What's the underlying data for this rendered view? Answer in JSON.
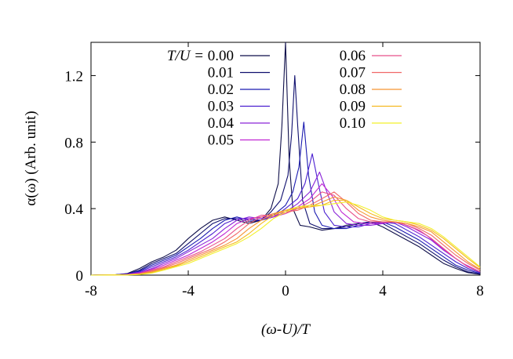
{
  "chart_data": {
    "type": "line",
    "title": "",
    "xlabel": "(ω-U)/T",
    "ylabel": "α(ω) (Arb. unit)",
    "xlim": [
      -8,
      8
    ],
    "ylim": [
      0,
      1.4
    ],
    "xticks": [
      -8,
      -4,
      0,
      4,
      8
    ],
    "yticks": [
      0,
      0.4,
      0.8,
      1.2
    ],
    "xtick_labels": [
      "-8",
      "-4",
      "0",
      "4",
      "8"
    ],
    "ytick_labels": [
      "0",
      "0.4",
      "0.8",
      "1.2"
    ],
    "grid": false,
    "legend": {
      "placement": "top",
      "header": "T/U =",
      "columns": 2
    },
    "series": [
      {
        "name": "0.00",
        "color": "#0f0f4a",
        "x": [
          -8,
          -7,
          -6.5,
          -6,
          -5.5,
          -5,
          -4.5,
          -4,
          -3.5,
          -3,
          -2.5,
          -2,
          -1.5,
          -1,
          -0.6,
          -0.3,
          -0.15,
          0,
          0.15,
          0.3,
          0.6,
          1,
          1.5,
          2,
          2.5,
          3,
          3.5,
          4,
          4.5,
          5,
          5.5,
          6,
          6.5,
          7,
          7.5,
          8
        ],
        "y": [
          0,
          0.002,
          0.01,
          0.04,
          0.08,
          0.11,
          0.15,
          0.22,
          0.28,
          0.33,
          0.35,
          0.33,
          0.31,
          0.33,
          0.4,
          0.55,
          0.9,
          1.4,
          0.7,
          0.4,
          0.3,
          0.29,
          0.27,
          0.28,
          0.3,
          0.31,
          0.32,
          0.29,
          0.25,
          0.21,
          0.17,
          0.12,
          0.07,
          0.04,
          0.015,
          0.005
        ]
      },
      {
        "name": "0.01",
        "color": "#10106e",
        "x": [
          -8,
          -7,
          -6.5,
          -6,
          -5.5,
          -5,
          -4.5,
          -4,
          -3.5,
          -3,
          -2.5,
          -2,
          -1.5,
          -1,
          -0.6,
          -0.2,
          0.1,
          0.25,
          0.38,
          0.5,
          0.7,
          1,
          1.5,
          2,
          2.5,
          3,
          3.5,
          4,
          4.5,
          5,
          5.5,
          6,
          6.5,
          7,
          7.5,
          8
        ],
        "y": [
          0,
          0.002,
          0.008,
          0.03,
          0.07,
          0.1,
          0.13,
          0.19,
          0.25,
          0.31,
          0.34,
          0.34,
          0.32,
          0.33,
          0.38,
          0.45,
          0.6,
          0.85,
          1.2,
          0.9,
          0.45,
          0.31,
          0.28,
          0.28,
          0.29,
          0.31,
          0.32,
          0.31,
          0.27,
          0.23,
          0.19,
          0.14,
          0.09,
          0.05,
          0.02,
          0.007
        ]
      },
      {
        "name": "0.02",
        "color": "#1a1ab0",
        "x": [
          -8,
          -7,
          -6.5,
          -6,
          -5.5,
          -5,
          -4.5,
          -4,
          -3.5,
          -3,
          -2.5,
          -2,
          -1.5,
          -1,
          -0.5,
          0,
          0.3,
          0.55,
          0.75,
          0.95,
          1.2,
          1.5,
          2,
          2.5,
          3,
          3.5,
          4,
          4.5,
          5,
          5.5,
          6,
          6.5,
          7,
          7.5,
          8
        ],
        "y": [
          0,
          0.002,
          0.007,
          0.025,
          0.06,
          0.09,
          0.12,
          0.17,
          0.22,
          0.28,
          0.33,
          0.35,
          0.33,
          0.33,
          0.36,
          0.42,
          0.5,
          0.65,
          0.92,
          0.6,
          0.38,
          0.3,
          0.28,
          0.28,
          0.3,
          0.32,
          0.32,
          0.29,
          0.25,
          0.21,
          0.16,
          0.11,
          0.06,
          0.03,
          0.01
        ]
      },
      {
        "name": "0.03",
        "color": "#4a1fd0",
        "x": [
          -8,
          -7,
          -6.5,
          -6,
          -5.5,
          -5,
          -4.5,
          -4,
          -3.5,
          -3,
          -2.5,
          -2,
          -1.5,
          -1,
          -0.5,
          0,
          0.5,
          0.8,
          1.1,
          1.35,
          1.6,
          2,
          2.5,
          3,
          3.5,
          4,
          4.5,
          5,
          5.5,
          6,
          6.5,
          7,
          7.5,
          8
        ],
        "y": [
          0,
          0.002,
          0.006,
          0.02,
          0.05,
          0.08,
          0.11,
          0.15,
          0.2,
          0.25,
          0.31,
          0.34,
          0.34,
          0.33,
          0.35,
          0.4,
          0.46,
          0.55,
          0.73,
          0.55,
          0.38,
          0.3,
          0.29,
          0.29,
          0.31,
          0.32,
          0.31,
          0.27,
          0.23,
          0.18,
          0.13,
          0.08,
          0.04,
          0.015
        ]
      },
      {
        "name": "0.04",
        "color": "#8a24d8",
        "x": [
          -8,
          -7,
          -6.5,
          -6,
          -5.5,
          -5,
          -4.5,
          -4,
          -3.5,
          -3,
          -2.5,
          -2,
          -1.5,
          -1,
          -0.5,
          0,
          0.5,
          1,
          1.4,
          1.7,
          2,
          2.5,
          3,
          3.5,
          4,
          4.5,
          5,
          5.5,
          6,
          6.5,
          7,
          7.5,
          8
        ],
        "y": [
          0,
          0.001,
          0.005,
          0.016,
          0.04,
          0.07,
          0.1,
          0.14,
          0.18,
          0.22,
          0.28,
          0.33,
          0.35,
          0.34,
          0.35,
          0.38,
          0.43,
          0.5,
          0.62,
          0.5,
          0.38,
          0.31,
          0.3,
          0.3,
          0.31,
          0.32,
          0.29,
          0.25,
          0.21,
          0.15,
          0.1,
          0.05,
          0.02
        ]
      },
      {
        "name": "0.05",
        "color": "#c026d3",
        "x": [
          -8,
          -7,
          -6.5,
          -6,
          -5.5,
          -5,
          -4.5,
          -4,
          -3.5,
          -3,
          -2.5,
          -2,
          -1.5,
          -1,
          -0.5,
          0,
          0.5,
          1,
          1.5,
          1.9,
          2.3,
          2.8,
          3.3,
          3.8,
          4.3,
          4.8,
          5.3,
          5.8,
          6.3,
          6.8,
          7.3,
          8
        ],
        "y": [
          0,
          0.001,
          0.004,
          0.013,
          0.035,
          0.06,
          0.09,
          0.12,
          0.16,
          0.2,
          0.25,
          0.31,
          0.34,
          0.35,
          0.35,
          0.37,
          0.41,
          0.46,
          0.55,
          0.48,
          0.38,
          0.32,
          0.31,
          0.31,
          0.32,
          0.31,
          0.28,
          0.24,
          0.18,
          0.12,
          0.07,
          0.02
        ]
      },
      {
        "name": "0.06",
        "color": "#e8508a",
        "x": [
          -8,
          -7,
          -6.5,
          -6,
          -5.5,
          -5,
          -4.5,
          -4,
          -3.5,
          -3,
          -2.5,
          -2,
          -1.5,
          -1,
          -0.5,
          0,
          0.5,
          1,
          1.5,
          2,
          2.5,
          3,
          3.5,
          4,
          4.5,
          5,
          5.5,
          6,
          6.5,
          7,
          7.5,
          8
        ],
        "y": [
          0,
          0.001,
          0.003,
          0.01,
          0.03,
          0.05,
          0.08,
          0.11,
          0.14,
          0.18,
          0.22,
          0.28,
          0.33,
          0.36,
          0.36,
          0.37,
          0.4,
          0.44,
          0.5,
          0.48,
          0.4,
          0.34,
          0.32,
          0.32,
          0.32,
          0.3,
          0.27,
          0.22,
          0.16,
          0.1,
          0.05,
          0.02
        ]
      },
      {
        "name": "0.07",
        "color": "#f06868",
        "x": [
          -8,
          -7,
          -6.5,
          -6,
          -5.5,
          -5,
          -4.5,
          -4,
          -3.5,
          -3,
          -2.5,
          -2,
          -1.5,
          -1,
          -0.5,
          0,
          0.5,
          1,
          1.5,
          2,
          2.5,
          3,
          3.5,
          4,
          4.5,
          5,
          5.5,
          6,
          6.5,
          7,
          7.5,
          8
        ],
        "y": [
          0,
          0.001,
          0.002,
          0.008,
          0.025,
          0.045,
          0.07,
          0.1,
          0.13,
          0.16,
          0.2,
          0.25,
          0.31,
          0.35,
          0.37,
          0.38,
          0.39,
          0.42,
          0.46,
          0.5,
          0.44,
          0.37,
          0.33,
          0.32,
          0.32,
          0.31,
          0.28,
          0.24,
          0.18,
          0.12,
          0.07,
          0.03
        ]
      },
      {
        "name": "0.08",
        "color": "#f59432",
        "x": [
          -8,
          -7,
          -6.5,
          -6,
          -5.5,
          -5,
          -4.5,
          -4,
          -3.5,
          -3,
          -2.5,
          -2,
          -1.5,
          -1,
          -0.5,
          0,
          0.5,
          1,
          1.5,
          2,
          2.5,
          3,
          3.5,
          4,
          4.5,
          5,
          5.5,
          6,
          6.5,
          7,
          7.5,
          8
        ],
        "y": [
          0,
          0.001,
          0.002,
          0.006,
          0.02,
          0.04,
          0.06,
          0.09,
          0.12,
          0.15,
          0.18,
          0.22,
          0.28,
          0.33,
          0.37,
          0.39,
          0.4,
          0.41,
          0.44,
          0.47,
          0.45,
          0.39,
          0.35,
          0.33,
          0.32,
          0.31,
          0.29,
          0.26,
          0.2,
          0.14,
          0.08,
          0.035
        ]
      },
      {
        "name": "0.09",
        "color": "#f5b820",
        "x": [
          -8,
          -7,
          -6.5,
          -6,
          -5.5,
          -5,
          -4.5,
          -4,
          -3.5,
          -3,
          -2.5,
          -2,
          -1.5,
          -1,
          -0.5,
          0,
          0.5,
          1,
          1.5,
          2,
          2.5,
          3,
          3.5,
          4,
          4.5,
          5,
          5.5,
          6,
          6.5,
          7,
          7.5,
          8
        ],
        "y": [
          0,
          0.001,
          0.002,
          0.005,
          0.015,
          0.035,
          0.055,
          0.08,
          0.11,
          0.14,
          0.17,
          0.2,
          0.25,
          0.31,
          0.36,
          0.39,
          0.41,
          0.41,
          0.42,
          0.45,
          0.45,
          0.41,
          0.37,
          0.34,
          0.33,
          0.32,
          0.3,
          0.27,
          0.22,
          0.16,
          0.1,
          0.045
        ]
      },
      {
        "name": "0.10",
        "color": "#f2f02a",
        "x": [
          -8,
          -7,
          -6.5,
          -6,
          -5.5,
          -5,
          -4.5,
          -4,
          -3.5,
          -3,
          -2.5,
          -2,
          -1.5,
          -1,
          -0.5,
          0,
          0.5,
          1,
          1.5,
          2,
          2.5,
          3,
          3.5,
          4,
          4.5,
          5,
          5.5,
          6,
          6.5,
          7,
          7.5,
          8
        ],
        "y": [
          0,
          0.001,
          0.001,
          0.004,
          0.012,
          0.03,
          0.05,
          0.07,
          0.1,
          0.13,
          0.16,
          0.19,
          0.23,
          0.28,
          0.34,
          0.38,
          0.41,
          0.42,
          0.42,
          0.43,
          0.44,
          0.42,
          0.39,
          0.35,
          0.33,
          0.32,
          0.31,
          0.28,
          0.23,
          0.17,
          0.11,
          0.05
        ]
      }
    ]
  }
}
